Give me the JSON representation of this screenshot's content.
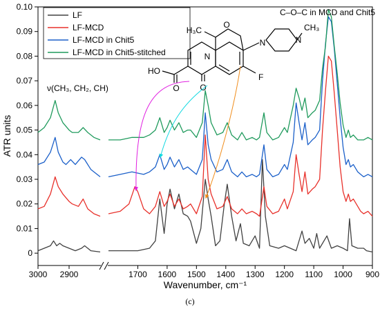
{
  "chart_data": {
    "type": "line",
    "xlabel": "Wavenumber, cm⁻¹",
    "ylabel": "ATR units",
    "panel_label": "(c)",
    "xaxis_broken": true,
    "xlim_left_segment": [
      3000,
      2800
    ],
    "xlim_right_segment": [
      1800,
      900
    ],
    "ylim": [
      -0.005,
      0.1
    ],
    "xticks_left": [
      3000,
      2900
    ],
    "xticks_right": [
      1700,
      1600,
      1500,
      1400,
      1300,
      1200,
      1100,
      1000,
      900
    ],
    "yticks": [
      0,
      0.01,
      0.02,
      0.03,
      0.04,
      0.05,
      0.06,
      0.07,
      0.08,
      0.09,
      0.1
    ],
    "ytick_labels": [
      "0",
      "0.01",
      "0.02",
      "0.03",
      "0.04",
      "0.05",
      "0.06",
      "0.07",
      "0.08",
      "0.09",
      "0.10"
    ],
    "legend_position": "top-left",
    "annotations": {
      "ch_stretch": "ν(CH₃, CH₂, CH)",
      "coc": "C–O–C in MCD and Chit5"
    },
    "molecule_labels": {
      "methyl_left": "H₃C",
      "methyl_right": "CH₃",
      "hetero_n1": "N",
      "hetero_n2": "N",
      "hetero_n3": "N",
      "ring_o": "O",
      "ketone_o": "O",
      "acid_o": "O",
      "acid_ho": "HO",
      "fluoro": "F"
    },
    "series": [
      {
        "name": "LF",
        "color": "#404040",
        "segment_left": [
          [
            3000,
            0.001
          ],
          [
            2980,
            0.002
          ],
          [
            2960,
            0.003
          ],
          [
            2950,
            0.005
          ],
          [
            2940,
            0.003
          ],
          [
            2930,
            0.004
          ],
          [
            2920,
            0.003
          ],
          [
            2900,
            0.002
          ],
          [
            2880,
            0.001
          ],
          [
            2860,
            0.002
          ],
          [
            2850,
            0.003
          ],
          [
            2830,
            0.001
          ],
          [
            2800,
            0.0005
          ]
        ],
        "segment_right": [
          [
            1800,
            0.001
          ],
          [
            1700,
            0.001
          ],
          [
            1660,
            0.002
          ],
          [
            1640,
            0.005
          ],
          [
            1625,
            0.022
          ],
          [
            1610,
            0.008
          ],
          [
            1600,
            0.02
          ],
          [
            1590,
            0.026
          ],
          [
            1575,
            0.018
          ],
          [
            1560,
            0.024
          ],
          [
            1545,
            0.016
          ],
          [
            1530,
            0.015
          ],
          [
            1520,
            0.013
          ],
          [
            1500,
            0.004
          ],
          [
            1485,
            0.01
          ],
          [
            1470,
            0.03
          ],
          [
            1460,
            0.022
          ],
          [
            1450,
            0.015
          ],
          [
            1435,
            0.003
          ],
          [
            1420,
            0.005
          ],
          [
            1405,
            0.02
          ],
          [
            1395,
            0.028
          ],
          [
            1380,
            0.015
          ],
          [
            1365,
            0.005
          ],
          [
            1350,
            0.012
          ],
          [
            1340,
            0.004
          ],
          [
            1320,
            0.003
          ],
          [
            1300,
            0.007
          ],
          [
            1285,
            0.002
          ],
          [
            1275,
            0.038
          ],
          [
            1265,
            0.015
          ],
          [
            1250,
            0.003
          ],
          [
            1220,
            0.002
          ],
          [
            1200,
            0.003
          ],
          [
            1180,
            0.002
          ],
          [
            1160,
            0.001
          ],
          [
            1140,
            0.009
          ],
          [
            1130,
            0.004
          ],
          [
            1115,
            0.006
          ],
          [
            1100,
            0.002
          ],
          [
            1090,
            0.008
          ],
          [
            1080,
            0.002
          ],
          [
            1055,
            0.007
          ],
          [
            1040,
            0.002
          ],
          [
            1020,
            0.003
          ],
          [
            1000,
            0.002
          ],
          [
            985,
            0.001
          ],
          [
            978,
            0.014
          ],
          [
            970,
            0.003
          ],
          [
            950,
            0.002
          ],
          [
            930,
            0.002
          ],
          [
            920,
            0.001
          ],
          [
            900,
            0.0005
          ]
        ]
      },
      {
        "name": "LF-MCD",
        "color": "#e8302a",
        "segment_left": [
          [
            3000,
            0.018
          ],
          [
            2980,
            0.019
          ],
          [
            2960,
            0.024
          ],
          [
            2945,
            0.031
          ],
          [
            2935,
            0.027
          ],
          [
            2920,
            0.024
          ],
          [
            2900,
            0.021
          ],
          [
            2890,
            0.02
          ],
          [
            2870,
            0.019
          ],
          [
            2855,
            0.022
          ],
          [
            2840,
            0.018
          ],
          [
            2820,
            0.016
          ],
          [
            2800,
            0.015
          ]
        ],
        "segment_right": [
          [
            1800,
            0.016
          ],
          [
            1760,
            0.017
          ],
          [
            1730,
            0.02
          ],
          [
            1710,
            0.027
          ],
          [
            1700,
            0.025
          ],
          [
            1680,
            0.018
          ],
          [
            1660,
            0.016
          ],
          [
            1640,
            0.019
          ],
          [
            1625,
            0.025
          ],
          [
            1610,
            0.019
          ],
          [
            1600,
            0.021
          ],
          [
            1590,
            0.024
          ],
          [
            1575,
            0.019
          ],
          [
            1560,
            0.022
          ],
          [
            1545,
            0.018
          ],
          [
            1530,
            0.019
          ],
          [
            1520,
            0.02
          ],
          [
            1500,
            0.016
          ],
          [
            1480,
            0.023
          ],
          [
            1470,
            0.048
          ],
          [
            1460,
            0.03
          ],
          [
            1450,
            0.024
          ],
          [
            1430,
            0.018
          ],
          [
            1410,
            0.019
          ],
          [
            1395,
            0.023
          ],
          [
            1380,
            0.018
          ],
          [
            1360,
            0.016
          ],
          [
            1345,
            0.018
          ],
          [
            1330,
            0.016
          ],
          [
            1310,
            0.017
          ],
          [
            1295,
            0.016
          ],
          [
            1285,
            0.015
          ],
          [
            1270,
            0.027
          ],
          [
            1260,
            0.019
          ],
          [
            1240,
            0.016
          ],
          [
            1220,
            0.017
          ],
          [
            1200,
            0.022
          ],
          [
            1190,
            0.018
          ],
          [
            1170,
            0.025
          ],
          [
            1160,
            0.04
          ],
          [
            1150,
            0.032
          ],
          [
            1140,
            0.025
          ],
          [
            1130,
            0.033
          ],
          [
            1120,
            0.024
          ],
          [
            1105,
            0.026
          ],
          [
            1095,
            0.027
          ],
          [
            1080,
            0.03
          ],
          [
            1070,
            0.05
          ],
          [
            1060,
            0.066
          ],
          [
            1050,
            0.08
          ],
          [
            1040,
            0.078
          ],
          [
            1030,
            0.065
          ],
          [
            1020,
            0.05
          ],
          [
            1010,
            0.035
          ],
          [
            1000,
            0.025
          ],
          [
            990,
            0.021
          ],
          [
            982,
            0.024
          ],
          [
            975,
            0.021
          ],
          [
            965,
            0.022
          ],
          [
            950,
            0.019
          ],
          [
            940,
            0.017
          ],
          [
            930,
            0.016
          ],
          [
            915,
            0.017
          ],
          [
            900,
            0.015
          ]
        ]
      },
      {
        "name": "LF-MCD in Chit5",
        "color": "#1a5fc9",
        "segment_left": [
          [
            3000,
            0.036
          ],
          [
            2980,
            0.037
          ],
          [
            2960,
            0.041
          ],
          [
            2945,
            0.047
          ],
          [
            2935,
            0.041
          ],
          [
            2920,
            0.037
          ],
          [
            2910,
            0.036
          ],
          [
            2895,
            0.038
          ],
          [
            2880,
            0.036
          ],
          [
            2860,
            0.039
          ],
          [
            2850,
            0.038
          ],
          [
            2830,
            0.034
          ],
          [
            2800,
            0.031
          ]
        ],
        "segment_right": [
          [
            1800,
            0.031
          ],
          [
            1760,
            0.032
          ],
          [
            1720,
            0.033
          ],
          [
            1680,
            0.032
          ],
          [
            1660,
            0.033
          ],
          [
            1640,
            0.035
          ],
          [
            1625,
            0.04
          ],
          [
            1610,
            0.034
          ],
          [
            1600,
            0.036
          ],
          [
            1590,
            0.039
          ],
          [
            1575,
            0.035
          ],
          [
            1560,
            0.038
          ],
          [
            1545,
            0.034
          ],
          [
            1530,
            0.035
          ],
          [
            1520,
            0.034
          ],
          [
            1500,
            0.032
          ],
          [
            1480,
            0.038
          ],
          [
            1470,
            0.057
          ],
          [
            1460,
            0.044
          ],
          [
            1450,
            0.038
          ],
          [
            1430,
            0.033
          ],
          [
            1410,
            0.034
          ],
          [
            1395,
            0.038
          ],
          [
            1380,
            0.033
          ],
          [
            1360,
            0.031
          ],
          [
            1345,
            0.033
          ],
          [
            1330,
            0.031
          ],
          [
            1310,
            0.032
          ],
          [
            1295,
            0.031
          ],
          [
            1285,
            0.032
          ],
          [
            1270,
            0.044
          ],
          [
            1260,
            0.034
          ],
          [
            1240,
            0.031
          ],
          [
            1220,
            0.032
          ],
          [
            1200,
            0.036
          ],
          [
            1190,
            0.034
          ],
          [
            1170,
            0.045
          ],
          [
            1160,
            0.061
          ],
          [
            1150,
            0.053
          ],
          [
            1140,
            0.046
          ],
          [
            1130,
            0.053
          ],
          [
            1120,
            0.044
          ],
          [
            1105,
            0.046
          ],
          [
            1095,
            0.047
          ],
          [
            1080,
            0.05
          ],
          [
            1070,
            0.07
          ],
          [
            1060,
            0.085
          ],
          [
            1050,
            0.096
          ],
          [
            1040,
            0.094
          ],
          [
            1030,
            0.083
          ],
          [
            1020,
            0.069
          ],
          [
            1010,
            0.055
          ],
          [
            1000,
            0.043
          ],
          [
            990,
            0.036
          ],
          [
            982,
            0.038
          ],
          [
            975,
            0.035
          ],
          [
            965,
            0.036
          ],
          [
            950,
            0.033
          ],
          [
            940,
            0.032
          ],
          [
            930,
            0.031
          ],
          [
            915,
            0.032
          ],
          [
            900,
            0.031
          ]
        ]
      },
      {
        "name": "LF-MCD in Chit5-stitched",
        "color": "#1f9a5c",
        "segment_left": [
          [
            3000,
            0.049
          ],
          [
            2980,
            0.051
          ],
          [
            2960,
            0.055
          ],
          [
            2945,
            0.062
          ],
          [
            2935,
            0.057
          ],
          [
            2920,
            0.053
          ],
          [
            2900,
            0.05
          ],
          [
            2890,
            0.049
          ],
          [
            2870,
            0.049
          ],
          [
            2855,
            0.051
          ],
          [
            2840,
            0.049
          ],
          [
            2820,
            0.047
          ],
          [
            2800,
            0.046
          ]
        ],
        "segment_right": [
          [
            1800,
            0.046
          ],
          [
            1760,
            0.046
          ],
          [
            1720,
            0.047
          ],
          [
            1680,
            0.047
          ],
          [
            1660,
            0.048
          ],
          [
            1640,
            0.05
          ],
          [
            1625,
            0.055
          ],
          [
            1610,
            0.049
          ],
          [
            1600,
            0.051
          ],
          [
            1590,
            0.054
          ],
          [
            1575,
            0.05
          ],
          [
            1560,
            0.053
          ],
          [
            1545,
            0.049
          ],
          [
            1530,
            0.05
          ],
          [
            1520,
            0.05
          ],
          [
            1500,
            0.047
          ],
          [
            1480,
            0.053
          ],
          [
            1470,
            0.066
          ],
          [
            1460,
            0.06
          ],
          [
            1450,
            0.053
          ],
          [
            1430,
            0.048
          ],
          [
            1410,
            0.049
          ],
          [
            1395,
            0.053
          ],
          [
            1380,
            0.048
          ],
          [
            1360,
            0.046
          ],
          [
            1345,
            0.049
          ],
          [
            1330,
            0.046
          ],
          [
            1310,
            0.047
          ],
          [
            1295,
            0.046
          ],
          [
            1285,
            0.047
          ],
          [
            1270,
            0.057
          ],
          [
            1260,
            0.049
          ],
          [
            1240,
            0.046
          ],
          [
            1220,
            0.047
          ],
          [
            1200,
            0.051
          ],
          [
            1190,
            0.049
          ],
          [
            1170,
            0.06
          ],
          [
            1160,
            0.067
          ],
          [
            1150,
            0.063
          ],
          [
            1140,
            0.058
          ],
          [
            1130,
            0.063
          ],
          [
            1120,
            0.055
          ],
          [
            1105,
            0.057
          ],
          [
            1095,
            0.058
          ],
          [
            1080,
            0.062
          ],
          [
            1070,
            0.075
          ],
          [
            1060,
            0.084
          ],
          [
            1050,
            0.099
          ],
          [
            1040,
            0.096
          ],
          [
            1030,
            0.084
          ],
          [
            1020,
            0.073
          ],
          [
            1010,
            0.061
          ],
          [
            1000,
            0.052
          ],
          [
            990,
            0.047
          ],
          [
            982,
            0.05
          ],
          [
            975,
            0.047
          ],
          [
            965,
            0.048
          ],
          [
            950,
            0.046
          ],
          [
            940,
            0.046
          ],
          [
            930,
            0.046
          ],
          [
            915,
            0.047
          ],
          [
            900,
            0.046
          ]
        ]
      }
    ]
  }
}
